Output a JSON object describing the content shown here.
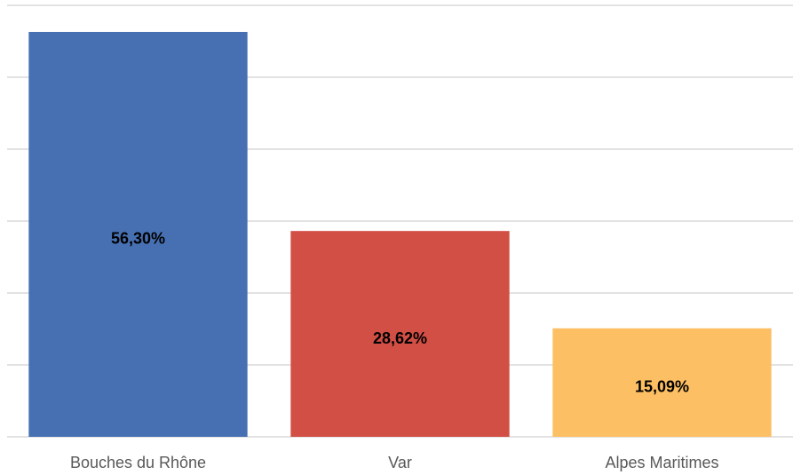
{
  "chart_data": {
    "type": "bar",
    "categories": [
      "Bouches du Rhône",
      "Var",
      "Alpes Maritimes"
    ],
    "values": [
      56.3,
      28.62,
      15.09
    ],
    "value_labels": [
      "56,30%",
      "28,62%",
      "15,09%"
    ],
    "colors": [
      "#4770b3",
      "#d24f45",
      "#fdbf63"
    ],
    "ylim": [
      0,
      60
    ],
    "yticks": [
      0,
      10,
      20,
      30,
      40,
      50,
      60
    ],
    "grid": true
  }
}
